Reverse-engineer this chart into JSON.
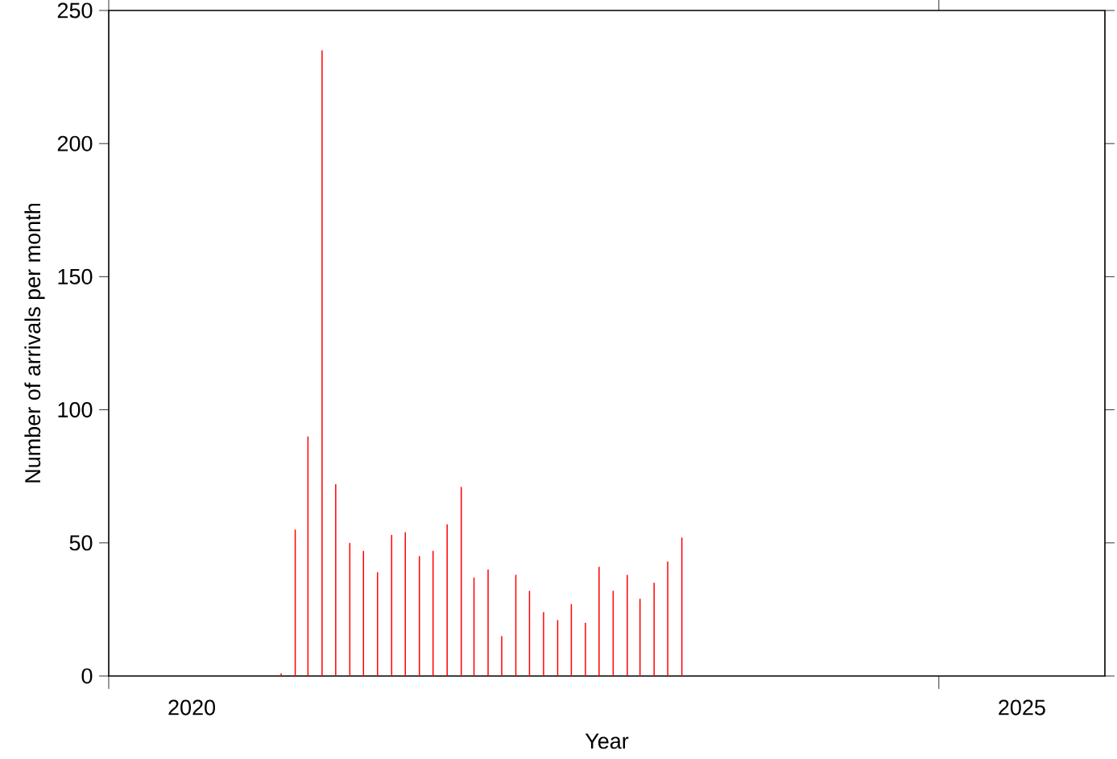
{
  "chart_data": {
    "type": "bar",
    "xlabel": "Year",
    "ylabel": "Number of arrivals per month",
    "x": [
      "2021-01-15",
      "2021-02-15",
      "2021-03-15",
      "2021-04-15",
      "2021-05-15",
      "2021-06-15",
      "2021-07-15",
      "2021-08-15",
      "2021-09-15",
      "2021-10-15",
      "2021-11-15",
      "2021-12-15",
      "2022-01-15",
      "2022-02-15",
      "2022-03-15",
      "2022-04-15",
      "2022-05-15",
      "2022-06-15",
      "2022-07-15",
      "2022-08-15",
      "2022-09-15",
      "2022-10-15",
      "2022-11-15",
      "2022-12-15",
      "2023-01-15",
      "2023-02-15",
      "2023-03-15",
      "2023-04-15",
      "2023-05-15",
      "2023-06-15"
    ],
    "values": [
      1,
      55,
      90,
      235,
      72,
      50,
      47,
      39,
      53,
      54,
      45,
      47,
      57,
      71,
      37,
      40,
      15,
      38,
      32,
      24,
      21,
      27,
      20,
      41,
      32,
      38,
      29,
      35,
      43,
      52
    ],
    "color": "#ff0000",
    "xlim": [
      "2020-01-01",
      "2026-01-01"
    ],
    "xticks": [
      {
        "value": "2020-01-01",
        "label": null
      },
      {
        "value": "2020-07-01",
        "label": "2020"
      },
      {
        "value": "2025-01-01",
        "label": null
      },
      {
        "value": "2025-07-01",
        "label": "2025"
      }
    ],
    "ylim": [
      0,
      250
    ],
    "yticks": [
      0,
      50,
      100,
      150,
      200,
      250
    ]
  }
}
